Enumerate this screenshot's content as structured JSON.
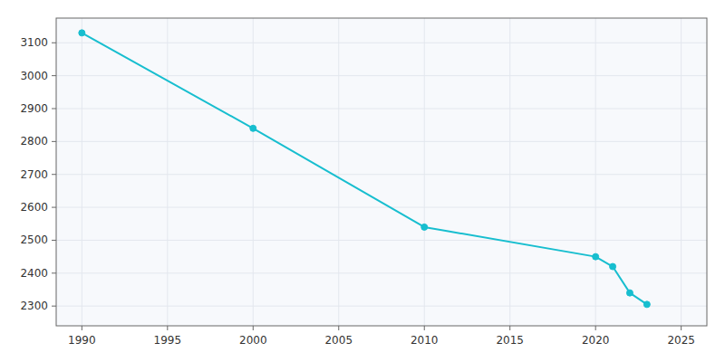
{
  "chart_data": {
    "type": "line",
    "x": [
      1990,
      2000,
      2010,
      2020,
      2021,
      2022,
      2023
    ],
    "values": [
      3130,
      2840,
      2540,
      2450,
      2420,
      2340,
      2305
    ],
    "color": "#17BECF",
    "marker": "circle",
    "xlim": [
      1988.5,
      2026.5
    ],
    "ylim": [
      2240,
      3175
    ],
    "xticks": [
      1990,
      1995,
      2000,
      2005,
      2010,
      2015,
      2020,
      2025
    ],
    "yticks": [
      2300,
      2400,
      2500,
      2600,
      2700,
      2800,
      2900,
      3000,
      3100
    ],
    "grid": true
  }
}
